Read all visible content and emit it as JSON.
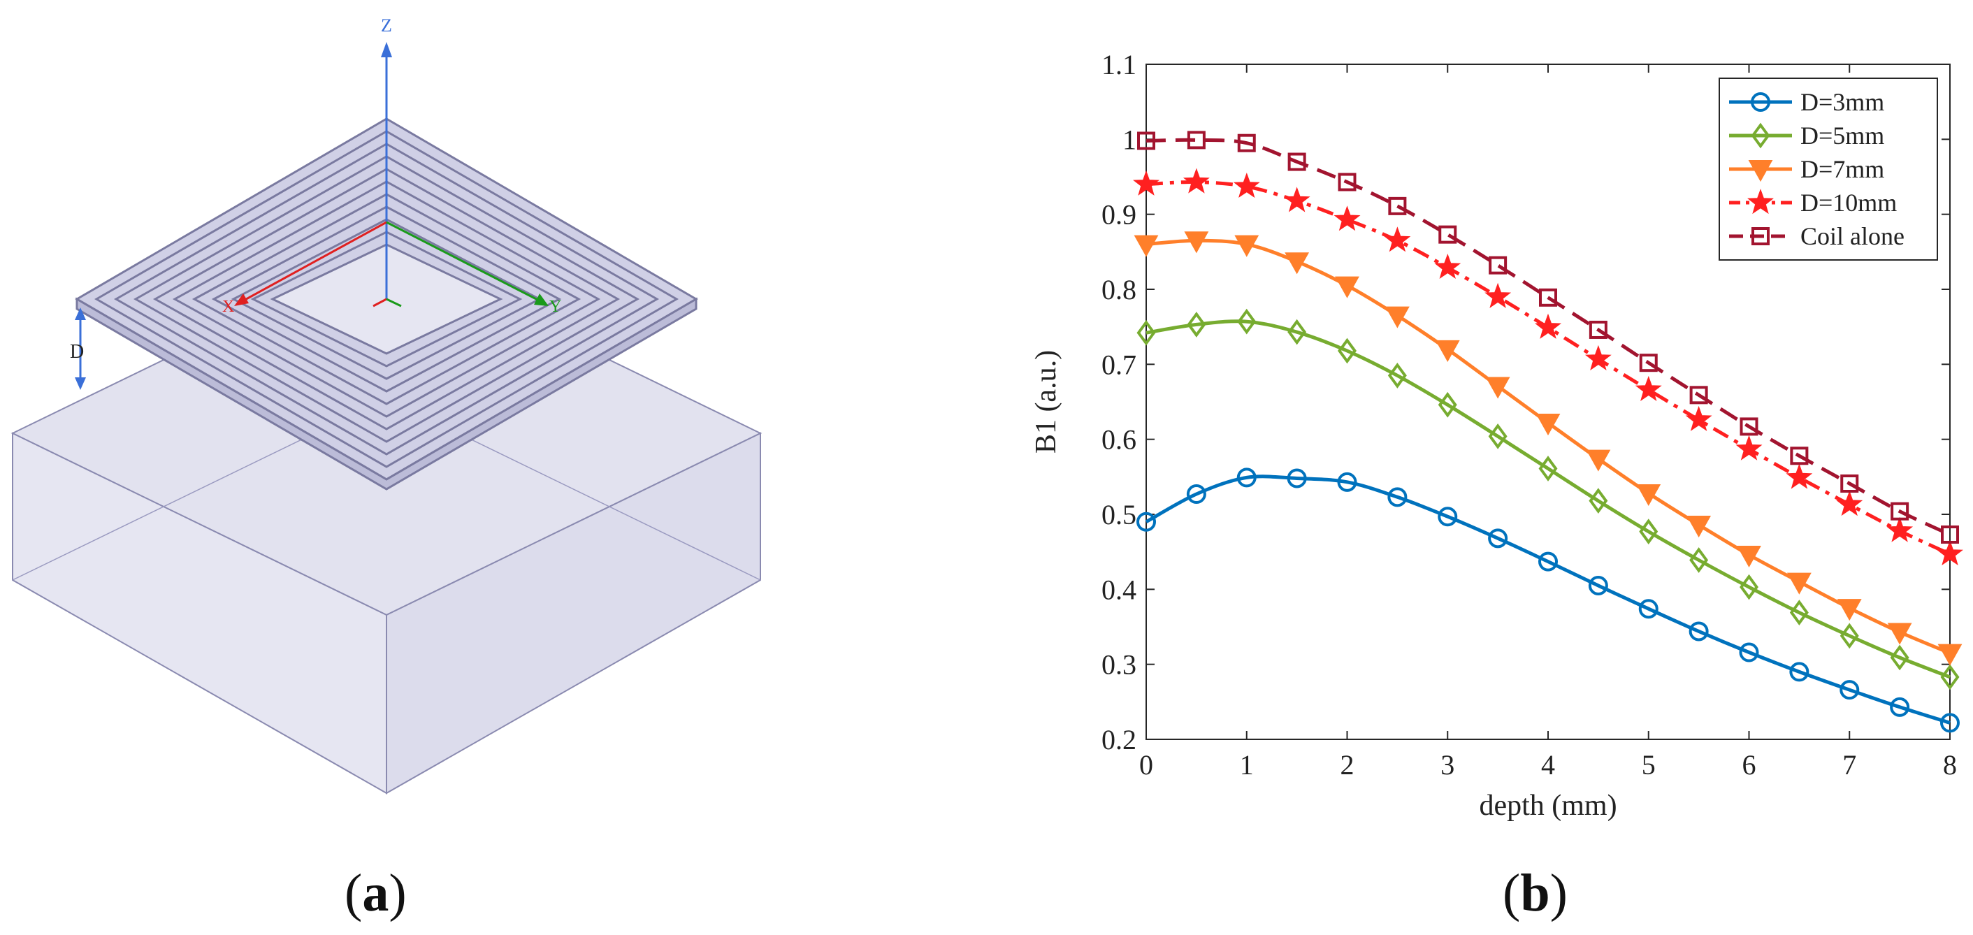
{
  "panel_a": {
    "axis_labels": {
      "z": "Z",
      "x": "X",
      "y": "Y"
    },
    "distance_label": "D",
    "caption": "a"
  },
  "panel_b": {
    "caption": "b"
  },
  "chart_data": {
    "type": "line",
    "xlabel": "depth (mm)",
    "ylabel": "B1 (a.u.)",
    "xlim": [
      0,
      8
    ],
    "ylim": [
      0.2,
      1.1
    ],
    "x_ticks": [
      "0",
      "1",
      "2",
      "3",
      "4",
      "5",
      "6",
      "7",
      "8"
    ],
    "y_ticks": [
      "0.2",
      "0.3",
      "0.4",
      "0.5",
      "0.6",
      "0.7",
      "0.8",
      "0.9",
      "1",
      "1.1"
    ],
    "grid": false,
    "legend_position": "top-right",
    "x": [
      0,
      0.5,
      1,
      1.5,
      2,
      2.5,
      3,
      3.5,
      4,
      4.5,
      5,
      5.5,
      6,
      6.5,
      7,
      7.5,
      8
    ],
    "series": [
      {
        "name": "D=3mm",
        "color": "#0072BD",
        "marker": "circle",
        "line": "solid",
        "values": [
          0.49,
          0.527,
          0.549,
          0.548,
          0.543,
          0.523,
          0.497,
          0.468,
          0.437,
          0.405,
          0.374,
          0.344,
          0.316,
          0.29,
          0.266,
          0.243,
          0.222
        ]
      },
      {
        "name": "D=5mm",
        "color": "#77AC30",
        "marker": "diamond",
        "line": "solid",
        "values": [
          0.742,
          0.753,
          0.757,
          0.743,
          0.718,
          0.685,
          0.646,
          0.604,
          0.561,
          0.518,
          0.477,
          0.439,
          0.403,
          0.369,
          0.338,
          0.309,
          0.283
        ]
      },
      {
        "name": "D=7mm",
        "color": "#FF7F2A",
        "marker": "triangle-down",
        "line": "solid",
        "values": [
          0.86,
          0.865,
          0.86,
          0.837,
          0.805,
          0.765,
          0.72,
          0.671,
          0.622,
          0.574,
          0.528,
          0.486,
          0.446,
          0.41,
          0.375,
          0.343,
          0.315
        ]
      },
      {
        "name": "D=10mm",
        "color": "#FF2020",
        "marker": "star",
        "line": "dashdot",
        "values": [
          0.94,
          0.943,
          0.937,
          0.918,
          0.893,
          0.865,
          0.829,
          0.79,
          0.749,
          0.707,
          0.666,
          0.626,
          0.587,
          0.549,
          0.513,
          0.478,
          0.447
        ]
      },
      {
        "name": "Coil alone",
        "color": "#A2142F",
        "marker": "square",
        "line": "dashed",
        "values": [
          0.998,
          0.999,
          0.995,
          0.97,
          0.943,
          0.911,
          0.873,
          0.832,
          0.789,
          0.746,
          0.702,
          0.659,
          0.617,
          0.578,
          0.541,
          0.504,
          0.473
        ]
      }
    ]
  }
}
